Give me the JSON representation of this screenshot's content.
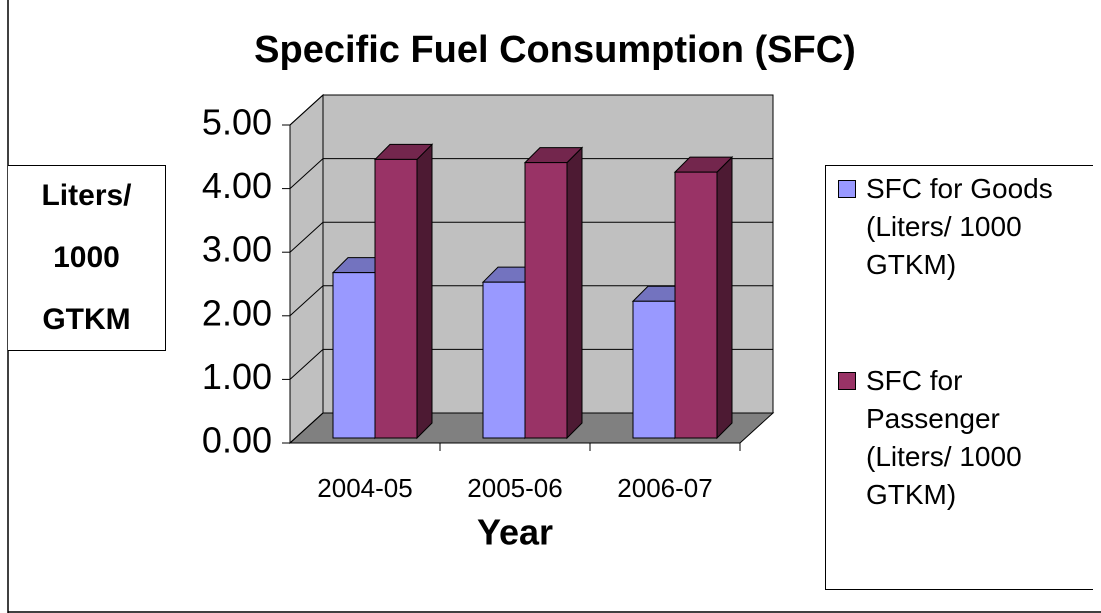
{
  "chart_data": {
    "type": "bar3d",
    "title": "Specific Fuel Consumption (SFC)",
    "x_label": "Year",
    "y_label": "Liters/ 1000 GTKM",
    "categories": [
      "2004-05",
      "2005-06",
      "2006-07"
    ],
    "series": [
      {
        "name": "SFC for Goods (Liters/ 1000 GTKM)",
        "color": "#9999ff",
        "values": [
          2.6,
          2.45,
          2.15
        ]
      },
      {
        "name": "SFC for Passenger (Liters/ 1000 GTKM)",
        "color": "#993366",
        "values": [
          4.38,
          4.33,
          4.18
        ]
      }
    ],
    "ylim": [
      0,
      5
    ],
    "yticks": [
      {
        "value": 0,
        "label": "0.00"
      },
      {
        "value": 1,
        "label": "1.00"
      },
      {
        "value": 2,
        "label": "2.00"
      },
      {
        "value": 3,
        "label": "3.00"
      },
      {
        "value": 4,
        "label": "4.00"
      },
      {
        "value": 5,
        "label": "5.00"
      }
    ],
    "grid": true,
    "legend": "right"
  }
}
